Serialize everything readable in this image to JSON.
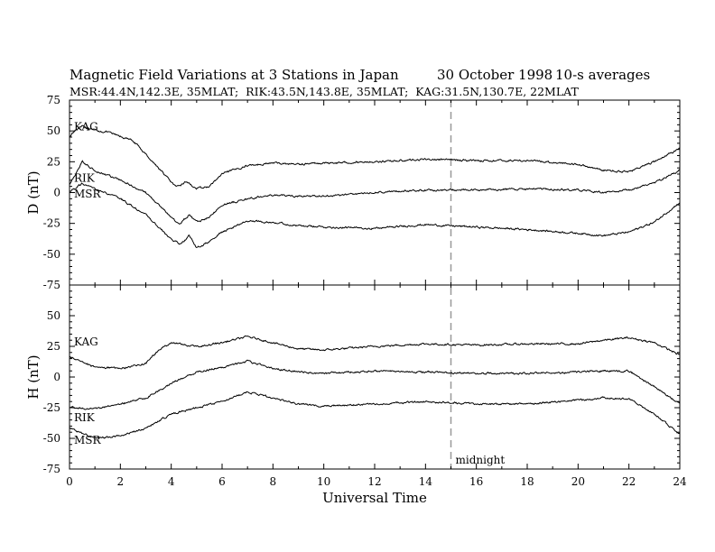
{
  "title": {
    "main": "Magnetic Field Variations at 3 Stations in Japan",
    "date": "30 October 1998",
    "averaging": "10-s averages"
  },
  "subtitle": "MSR:44.4N,142.3E, 35MLAT;  RIK:43.5N,143.8E, 35MLAT;  KAG:31.5N,130.7E, 22MLAT",
  "colors": {
    "axes": "#000000",
    "series": "#000000",
    "midline": "#999999"
  },
  "chart_data": [
    {
      "type": "line",
      "panel": "D",
      "ylabel": "D (nT)",
      "xlim": [
        0,
        24
      ],
      "ylim": [
        -75,
        75
      ],
      "yticks": [
        75,
        50,
        25,
        0,
        -25,
        -50,
        -75
      ],
      "series": [
        {
          "name": "KAG",
          "x": [
            0,
            0.5,
            0.8,
            1.5,
            2.5,
            3.5,
            4.2,
            4.6,
            5,
            5.5,
            6,
            7,
            8,
            9,
            10,
            12,
            14,
            16,
            18,
            20,
            21,
            22,
            23,
            24
          ],
          "y": [
            46,
            55,
            51,
            49,
            42,
            20,
            4,
            9,
            3,
            5,
            15,
            22,
            24,
            23,
            24,
            25,
            27,
            26,
            26,
            23,
            18,
            17,
            25,
            36
          ]
        },
        {
          "name": "RIK",
          "x": [
            0,
            0.5,
            1,
            2,
            3,
            4,
            4.3,
            4.7,
            5,
            5.5,
            6,
            7,
            8,
            9,
            10,
            12,
            14,
            16,
            18,
            20,
            21,
            22,
            23,
            24
          ],
          "y": [
            6,
            25,
            18,
            10,
            0,
            -20,
            -26,
            -18,
            -24,
            -20,
            -10,
            -5,
            -2,
            -3,
            -3,
            0,
            2,
            2,
            3,
            2,
            0,
            2,
            8,
            18
          ]
        },
        {
          "name": "MSR",
          "x": [
            0,
            0.5,
            1,
            2,
            3,
            4,
            4.4,
            4.7,
            5,
            5.5,
            6,
            7,
            8,
            9,
            10,
            12,
            14,
            16,
            18,
            20,
            21,
            22,
            23,
            24
          ],
          "y": [
            1,
            7,
            3,
            -5,
            -18,
            -38,
            -42,
            -35,
            -45,
            -40,
            -32,
            -23,
            -24,
            -27,
            -28,
            -29,
            -26,
            -28,
            -30,
            -33,
            -35,
            -32,
            -24,
            -8
          ]
        }
      ]
    },
    {
      "type": "line",
      "panel": "H",
      "ylabel": "H (nT)",
      "xlabel": "Universal Time",
      "xlim": [
        0,
        24
      ],
      "ylim": [
        -75,
        75
      ],
      "xticks": [
        0,
        2,
        4,
        6,
        8,
        10,
        12,
        14,
        16,
        18,
        20,
        22,
        24
      ],
      "yticks": [
        75,
        50,
        25,
        0,
        -25,
        -50,
        -75
      ],
      "annotation": {
        "text": "midnight",
        "x": 15
      },
      "series": [
        {
          "name": "KAG",
          "x": [
            0,
            1,
            2,
            3,
            3.5,
            4,
            5,
            6,
            7,
            8,
            9,
            10,
            12,
            14,
            16,
            18,
            20,
            21,
            22,
            23,
            24
          ],
          "y": [
            16,
            8,
            7,
            11,
            22,
            28,
            25,
            28,
            33,
            28,
            23,
            22,
            25,
            27,
            26,
            27,
            27,
            30,
            32,
            28,
            18
          ]
        },
        {
          "name": "RIK",
          "x": [
            0,
            1,
            2,
            3,
            4,
            5,
            6,
            7,
            8,
            9,
            10,
            12,
            14,
            16,
            18,
            20,
            21,
            22,
            23,
            24
          ],
          "y": [
            -25,
            -26,
            -22,
            -17,
            -5,
            4,
            8,
            13,
            7,
            4,
            3,
            5,
            4,
            3,
            3,
            4,
            5,
            5,
            -8,
            -22
          ]
        },
        {
          "name": "MSR",
          "x": [
            0,
            1,
            2,
            3,
            4,
            5,
            6,
            7,
            8,
            9,
            10,
            12,
            14,
            16,
            18,
            20,
            21,
            22,
            23,
            24
          ],
          "y": [
            -42,
            -50,
            -48,
            -42,
            -30,
            -25,
            -20,
            -12,
            -17,
            -22,
            -24,
            -22,
            -20,
            -22,
            -22,
            -19,
            -17,
            -18,
            -30,
            -47
          ]
        }
      ]
    }
  ]
}
